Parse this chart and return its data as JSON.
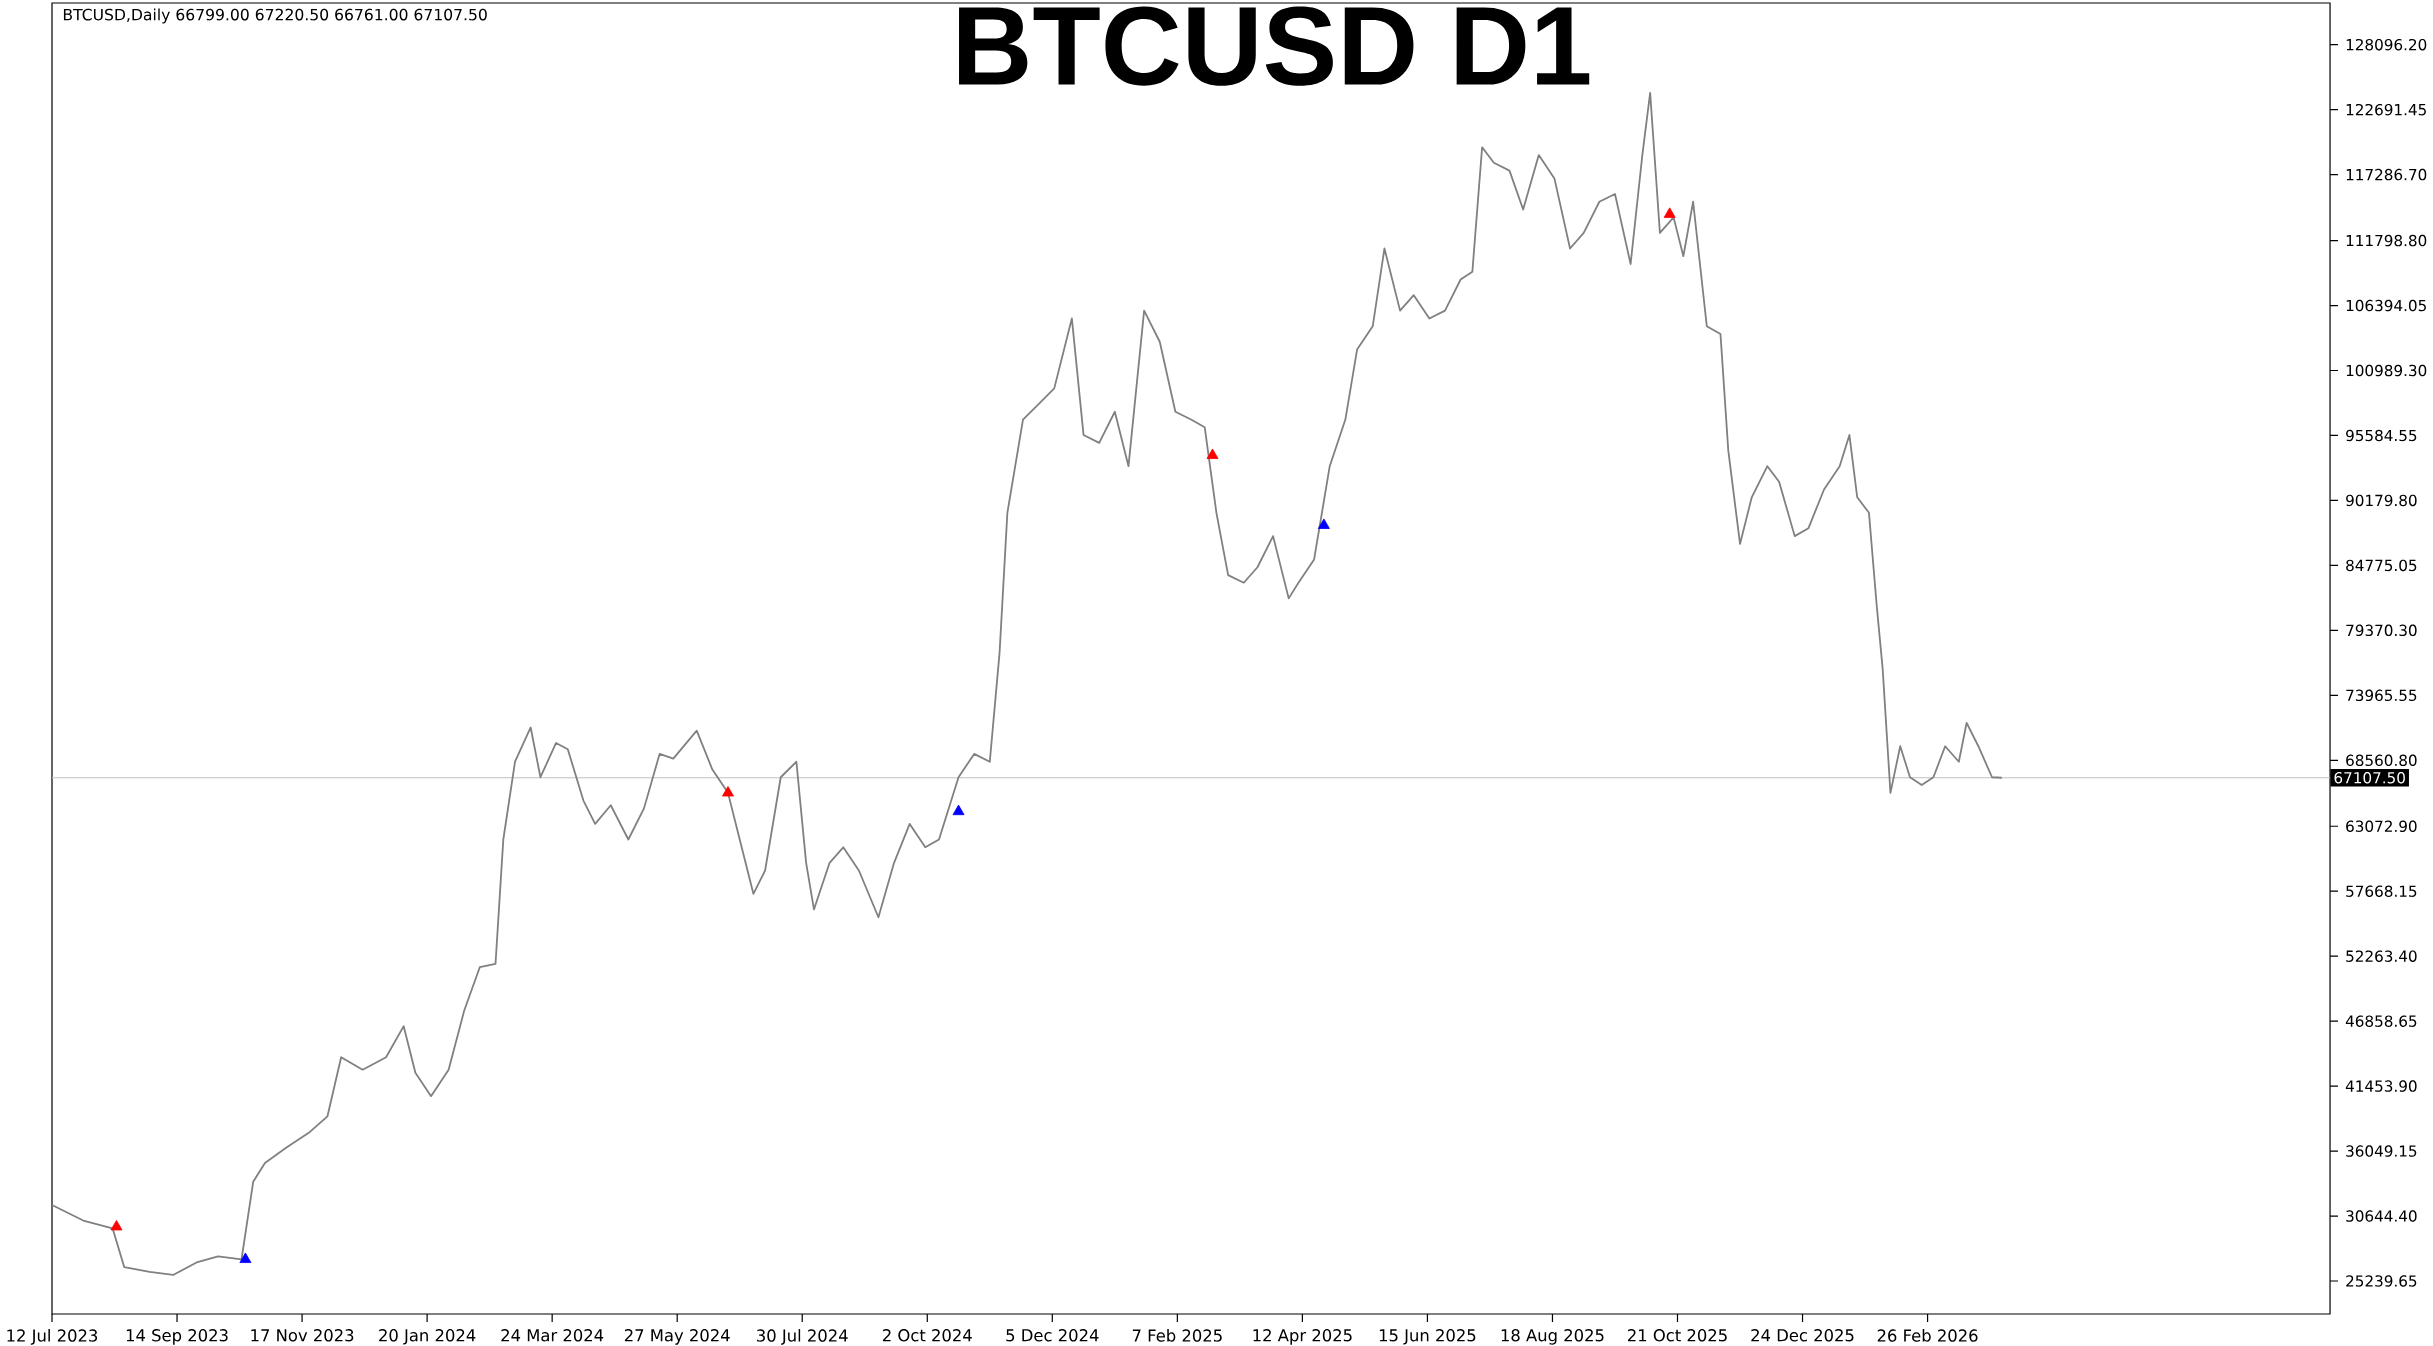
{
  "chart_data": {
    "type": "line",
    "title": "BTCUSD D1",
    "annotations": [
      "BTCUSD,Daily  66799.00 67220.50 66761.00 67107.50"
    ],
    "xlim": [
      "2023-07-12",
      "2026-09-20"
    ],
    "xticks": [
      {
        "value": "2023-07-12",
        "label": "12 Jul 2023"
      },
      {
        "value": "2023-09-14",
        "label": "14 Sep 2023"
      },
      {
        "value": "2023-11-17",
        "label": "17 Nov 2023"
      },
      {
        "value": "2024-01-20",
        "label": "20 Jan 2024"
      },
      {
        "value": "2024-03-24",
        "label": "24 Mar 2024"
      },
      {
        "value": "2024-05-27",
        "label": "27 May 2024"
      },
      {
        "value": "2024-07-30",
        "label": "30 Jul 2024"
      },
      {
        "value": "2024-10-02",
        "label": "2 Oct 2024"
      },
      {
        "value": "2024-12-05",
        "label": "5 Dec 2024"
      },
      {
        "value": "2025-02-07",
        "label": "7 Feb 2025"
      },
      {
        "value": "2025-04-12",
        "label": "12 Apr 2025"
      },
      {
        "value": "2025-06-15",
        "label": "15 Jun 2025"
      },
      {
        "value": "2025-08-18",
        "label": "18 Aug 2025"
      },
      {
        "value": "2025-10-21",
        "label": "21 Oct 2025"
      },
      {
        "value": "2025-12-24",
        "label": "24 Dec 2025"
      },
      {
        "value": "2026-02-26",
        "label": "26 Feb 2026"
      }
    ],
    "ylim": [
      22494,
      131565
    ],
    "yticks": [
      {
        "value": 25239.65,
        "label": "25239.65"
      },
      {
        "value": 30644.4,
        "label": "30644.40"
      },
      {
        "value": 36049.15,
        "label": "36049.15"
      },
      {
        "value": 41453.9,
        "label": "41453.90"
      },
      {
        "value": 46858.65,
        "label": "46858.65"
      },
      {
        "value": 52263.4,
        "label": "52263.40"
      },
      {
        "value": 57668.15,
        "label": "57668.15"
      },
      {
        "value": 63072.9,
        "label": "63072.90"
      },
      {
        "value": 68560.8,
        "label": "68560.80"
      },
      {
        "value": 73965.55,
        "label": "73965.55"
      },
      {
        "value": 79370.3,
        "label": "79370.30"
      },
      {
        "value": 84775.05,
        "label": "84775.05"
      },
      {
        "value": 90179.8,
        "label": "90179.80"
      },
      {
        "value": 95584.55,
        "label": "95584.55"
      },
      {
        "value": 100989.3,
        "label": "100989.30"
      },
      {
        "value": 106394.05,
        "label": "106394.05"
      },
      {
        "value": 111798.8,
        "label": "111798.80"
      },
      {
        "value": 117286.7,
        "label": "117286.70"
      },
      {
        "value": 122691.45,
        "label": "122691.45"
      },
      {
        "value": 128096.2,
        "label": "128096.20"
      }
    ],
    "ref_lines": [
      {
        "axis": "y",
        "value": 67107.5,
        "label": "67107.50",
        "color": "#c0c0c0"
      }
    ],
    "series": [
      {
        "color": "#808080",
        "x": [
          "2023-07-12",
          "2023-07-28",
          "2023-08-12",
          "2023-08-18",
          "2023-08-31",
          "2023-09-12",
          "2023-09-24",
          "2023-10-05",
          "2023-10-17",
          "2023-10-23",
          "2023-10-29",
          "2023-11-09",
          "2023-11-21",
          "2023-11-30",
          "2023-12-07",
          "2023-12-18",
          "2023-12-30",
          "2024-01-08",
          "2024-01-14",
          "2024-01-22",
          "2024-01-31",
          "2024-02-08",
          "2024-02-16",
          "2024-02-24",
          "2024-02-28",
          "2024-03-05",
          "2024-03-13",
          "2024-03-18",
          "2024-03-26",
          "2024-04-01",
          "2024-04-09",
          "2024-04-15",
          "2024-04-23",
          "2024-05-02",
          "2024-05-10",
          "2024-05-18",
          "2024-05-25",
          "2024-06-06",
          "2024-06-14",
          "2024-06-22",
          "2024-06-29",
          "2024-07-05",
          "2024-07-11",
          "2024-07-19",
          "2024-07-27",
          "2024-08-01",
          "2024-08-05",
          "2024-08-13",
          "2024-08-20",
          "2024-08-28",
          "2024-09-07",
          "2024-09-15",
          "2024-09-23",
          "2024-10-01",
          "2024-10-08",
          "2024-10-18",
          "2024-10-26",
          "2024-11-03",
          "2024-11-08",
          "2024-11-12",
          "2024-11-20",
          "2024-11-28",
          "2024-12-06",
          "2024-12-15",
          "2024-12-21",
          "2024-12-29",
          "2025-01-06",
          "2025-01-13",
          "2025-01-21",
          "2025-01-29",
          "2025-02-06",
          "2025-02-14",
          "2025-02-21",
          "2025-02-27",
          "2025-03-05",
          "2025-03-13",
          "2025-03-20",
          "2025-03-28",
          "2025-04-05",
          "2025-04-10",
          "2025-04-18",
          "2025-04-26",
          "2025-05-04",
          "2025-05-10",
          "2025-05-18",
          "2025-05-24",
          "2025-06-01",
          "2025-06-08",
          "2025-06-16",
          "2025-06-24",
          "2025-07-02",
          "2025-07-08",
          "2025-07-13",
          "2025-07-19",
          "2025-07-27",
          "2025-08-03",
          "2025-08-11",
          "2025-08-19",
          "2025-08-27",
          "2025-09-03",
          "2025-09-11",
          "2025-09-19",
          "2025-09-27",
          "2025-10-03",
          "2025-10-07",
          "2025-10-12",
          "2025-10-19",
          "2025-10-24",
          "2025-10-29",
          "2025-11-05",
          "2025-11-12",
          "2025-11-16",
          "2025-11-22",
          "2025-11-28",
          "2025-12-06",
          "2025-12-12",
          "2025-12-20",
          "2025-12-27",
          "2026-01-04",
          "2026-01-12",
          "2026-01-17",
          "2026-01-21",
          "2026-01-27",
          "2026-01-31",
          "2026-02-03",
          "2026-02-07",
          "2026-02-12",
          "2026-02-17",
          "2026-02-23",
          "2026-03-01",
          "2026-03-07",
          "2026-03-14",
          "2026-03-18",
          "2026-03-24",
          "2026-03-31",
          "2026-04-05"
        ],
        "values": [
          31560,
          30270,
          29620,
          26390,
          26000,
          25740,
          26780,
          27290,
          27040,
          33500,
          35060,
          36350,
          37640,
          38940,
          43860,
          42820,
          43860,
          46440,
          42560,
          40620,
          42820,
          47740,
          51360,
          51620,
          61970,
          68440,
          71290,
          67150,
          70000,
          69480,
          65210,
          63270,
          64820,
          61970,
          64560,
          69090,
          68700,
          71030,
          67790,
          65850,
          61320,
          57450,
          59390,
          67150,
          68440,
          60030,
          56150,
          60030,
          61320,
          59390,
          55500,
          60030,
          63270,
          61320,
          61970,
          67150,
          69090,
          68440,
          77500,
          89150,
          96910,
          98200,
          99500,
          105320,
          95620,
          94970,
          97560,
          93030,
          105970,
          103380,
          97560,
          96910,
          96270,
          89150,
          83970,
          83330,
          84620,
          87210,
          82030,
          83330,
          85270,
          93030,
          96910,
          102730,
          104670,
          111140,
          105970,
          107260,
          105320,
          105970,
          108560,
          109200,
          119560,
          118270,
          117620,
          114380,
          118910,
          116970,
          111140,
          112440,
          115030,
          115670,
          109850,
          118910,
          124090,
          112440,
          113730,
          110500,
          115030,
          104670,
          104020,
          94320,
          86560,
          90440,
          93030,
          91740,
          87210,
          87860,
          91090,
          93030,
          95620,
          90440,
          89150,
          81380,
          76210,
          65850,
          69730,
          67150,
          66500,
          67150,
          69730,
          68440,
          71680,
          69730,
          67150,
          67107.5
        ]
      },
      {
        "type": "scatter",
        "color": "#ff0000",
        "marker": "triangle",
        "x": [
          "2023-08-14",
          "2024-06-22",
          "2025-02-25",
          "2025-10-17"
        ],
        "values": [
          29750,
          65850,
          93930,
          113990
        ]
      },
      {
        "type": "scatter",
        "color": "#0000ff",
        "marker": "triangle",
        "x": [
          "2023-10-19",
          "2024-10-18",
          "2025-04-23"
        ],
        "values": [
          27040,
          64300,
          88110
        ]
      }
    ]
  }
}
